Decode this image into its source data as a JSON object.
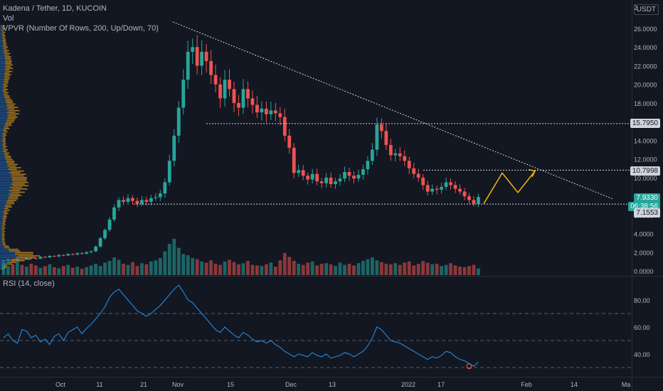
{
  "header": {
    "symbol_line": "Kadena / Tether, 1D, KUCOIN",
    "vol_label": "Vol",
    "vpvr_label": "VPVR (Number Of Rows, 200, Up/Down, 70)",
    "currency": "USDT"
  },
  "price_axis": {
    "ticks": [
      "26.0000",
      "24.0000",
      "22.0000",
      "20.0000",
      "18.0000",
      "14.0000",
      "12.0000",
      "10.0000",
      "6.0000",
      "4.0000",
      "2.0000",
      "0.0000"
    ],
    "tick_values": [
      26,
      24,
      22,
      20,
      18,
      14,
      12,
      10,
      6,
      4,
      2,
      0
    ],
    "top_label": "2"
  },
  "badges": {
    "level_high": "15.7950",
    "level_mid": "10.7998",
    "current_price": "7.9330",
    "countdown": "06:38:56",
    "level_low": "7.1553"
  },
  "rsi": {
    "label": "RSI (14, close)",
    "ticks": [
      "80.00",
      "60.00",
      "40.00"
    ],
    "tick_values": [
      80,
      60,
      40
    ],
    "upper_band": 70,
    "lower_band": 30
  },
  "time_axis": {
    "labels": [
      "Oct",
      "11",
      "21",
      "Nov",
      "15",
      "Dec",
      "13",
      "2022",
      "17",
      "Feb",
      "14",
      "Ma"
    ]
  },
  "colors": {
    "background": "#131722",
    "up": "#26a69a",
    "down": "#ef5350",
    "trendline": "#d1d4dc",
    "projection": "#f0b90b",
    "rsi_line": "#2196f3",
    "vpvr_up": "#1e5b9e",
    "vpvr_down": "#c28a1b"
  },
  "chart_data": {
    "type": "candlestick",
    "price_series_close": [
      1.1,
      1.2,
      1.15,
      1.3,
      1.25,
      1.4,
      1.35,
      1.3,
      1.5,
      1.45,
      1.6,
      1.55,
      1.7,
      1.65,
      1.8,
      1.75,
      1.9,
      1.85,
      2.0,
      2.1,
      2.6,
      3.5,
      4.4,
      5.5,
      6.8,
      7.6,
      7.4,
      7.8,
      7.5,
      7.2,
      7.6,
      7.4,
      7.8,
      7.9,
      8.3,
      9.5,
      11.8,
      14.5,
      17.5,
      20.5,
      23.5,
      24.0,
      22.0,
      23.5,
      22.5,
      21.0,
      20.0,
      18.5,
      20.5,
      19.5,
      18.0,
      17.5,
      19.5,
      18.5,
      17.8,
      17.0,
      17.4,
      16.8,
      17.2,
      16.9,
      16.5,
      14.5,
      13.2,
      10.5,
      10.8,
      10.2,
      9.8,
      10.4,
      9.6,
      9.4,
      10.0,
      9.3,
      9.6,
      9.9,
      10.6,
      10.2,
      9.9,
      10.3,
      10.9,
      11.8,
      13.0,
      15.7,
      15.0,
      13.5,
      12.4,
      12.6,
      12.3,
      11.8,
      11.0,
      10.4,
      10.0,
      9.2,
      8.5,
      8.8,
      8.7,
      9.0,
      9.5,
      9.2,
      8.8,
      8.5,
      8.0,
      7.6,
      7.2,
      7.93
    ],
    "volume": [
      2.2,
      1.6,
      1.9,
      2.4,
      1.8,
      1.5,
      2.0,
      1.7,
      1.3,
      1.6,
      1.9,
      1.4,
      1.2,
      1.6,
      1.8,
      1.3,
      1.5,
      1.1,
      1.4,
      1.7,
      2.0,
      1.6,
      2.2,
      2.5,
      3.1,
      2.7,
      2.0,
      1.8,
      2.3,
      1.6,
      2.1,
      1.9,
      2.4,
      2.6,
      3.0,
      4.2,
      5.5,
      6.4,
      4.8,
      3.7,
      3.5,
      3.0,
      2.8,
      2.4,
      2.2,
      2.6,
      2.0,
      1.8,
      2.4,
      2.7,
      2.3,
      1.9,
      2.1,
      2.5,
      1.8,
      1.7,
      1.6,
      1.9,
      2.2,
      1.5,
      2.6,
      3.9,
      3.2,
      2.5,
      2.0,
      1.8,
      2.2,
      2.4,
      1.7,
      2.0,
      2.1,
      1.9,
      1.6,
      2.2,
      1.8,
      2.0,
      1.7,
      2.1,
      2.5,
      2.8,
      3.1,
      2.6,
      2.3,
      2.0,
      1.9,
      2.1,
      1.8,
      2.2,
      2.4,
      1.7,
      2.0,
      2.5,
      2.2,
      1.9,
      2.0,
      1.6,
      1.8,
      2.1,
      1.7,
      1.5,
      1.4,
      1.6,
      1.8,
      1.2
    ],
    "rsi_values": [
      52,
      55,
      50,
      48,
      58,
      57,
      52,
      54,
      49,
      51,
      47,
      53,
      55,
      50,
      56,
      58,
      60,
      55,
      59,
      62,
      66,
      70,
      75,
      82,
      86,
      88,
      84,
      80,
      76,
      72,
      70,
      68,
      70,
      73,
      76,
      80,
      84,
      88,
      91,
      86,
      80,
      78,
      74,
      70,
      66,
      62,
      58,
      56,
      60,
      57,
      54,
      52,
      56,
      54,
      51,
      49,
      50,
      48,
      50,
      47,
      45,
      42,
      40,
      38,
      40,
      39,
      38,
      41,
      39,
      38,
      40,
      37,
      38,
      39,
      41,
      40,
      38,
      40,
      42,
      46,
      52,
      60,
      58,
      54,
      50,
      49,
      48,
      46,
      44,
      42,
      40,
      38,
      36,
      38,
      37,
      39,
      42,
      41,
      38,
      36,
      35,
      33,
      31,
      34
    ],
    "trendline": {
      "from": [
        "Oct 29",
        26.7
      ],
      "to": [
        "Feb 11",
        7.7
      ]
    },
    "levels": [
      15.795,
      10.7998,
      7.1553
    ],
    "current_price": 7.933,
    "projection_path": [
      7.2,
      10.5,
      8.4,
      10.7
    ],
    "price_range": [
      0,
      27.5
    ],
    "rsi_range": [
      20,
      100
    ]
  }
}
